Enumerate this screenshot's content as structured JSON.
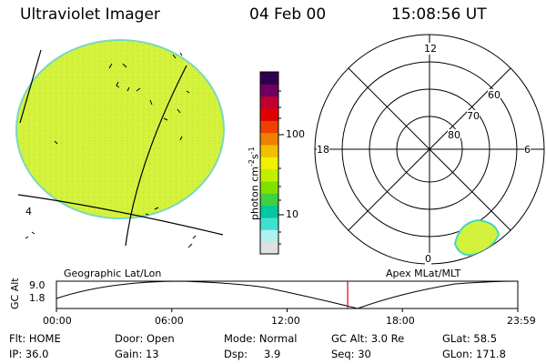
{
  "header": {
    "title": "Ultraviolet Imager",
    "date": "04 Feb 00",
    "time": "15:08:56 UT"
  },
  "colorbar": {
    "label_main": "photon cm",
    "label_exp1": "-2",
    "label_s": "s",
    "label_exp2": "-1",
    "ticks": [
      "100",
      "10"
    ],
    "colors": [
      "#e0e0e0",
      "#b0f0f0",
      "#40e0d0",
      "#00c8a0",
      "#40d040",
      "#80e000",
      "#c0f000",
      "#f0f000",
      "#f0c000",
      "#f08000",
      "#f04000",
      "#e00000",
      "#c00030",
      "#700060",
      "#300050"
    ]
  },
  "left_panel": {
    "caption": "Geographic Lat/Lon",
    "marker": "4",
    "fill_color": "#d4f23c"
  },
  "right_panel": {
    "caption": "Apex MLat/MLT",
    "mlt_labels": {
      "top": "12",
      "left": "18",
      "right": "6",
      "bottom": "0"
    },
    "lat_labels": [
      "60",
      "70",
      "80"
    ]
  },
  "timeline": {
    "axis_label": "GC Alt",
    "y_ticks": [
      "9.0",
      "1.8"
    ],
    "x_ticks": [
      "00:00",
      "06:00",
      "12:00",
      "18:00",
      "23:59"
    ],
    "current_time_hours": 15.15,
    "marker_color": "#e00000"
  },
  "info": {
    "flt": "Flt: HOME",
    "ip": "IP: 36.0",
    "door": "Door: Open",
    "gain": "Gain: 13",
    "mode": "Mode: Normal",
    "dsp_label": "Dsp:",
    "dsp_value": "3.9",
    "gc_alt": "GC Alt: 3.0 Re",
    "seq": "Seq: 30",
    "glat": "GLat:  58.5",
    "glon": "GLon: 171.8"
  }
}
